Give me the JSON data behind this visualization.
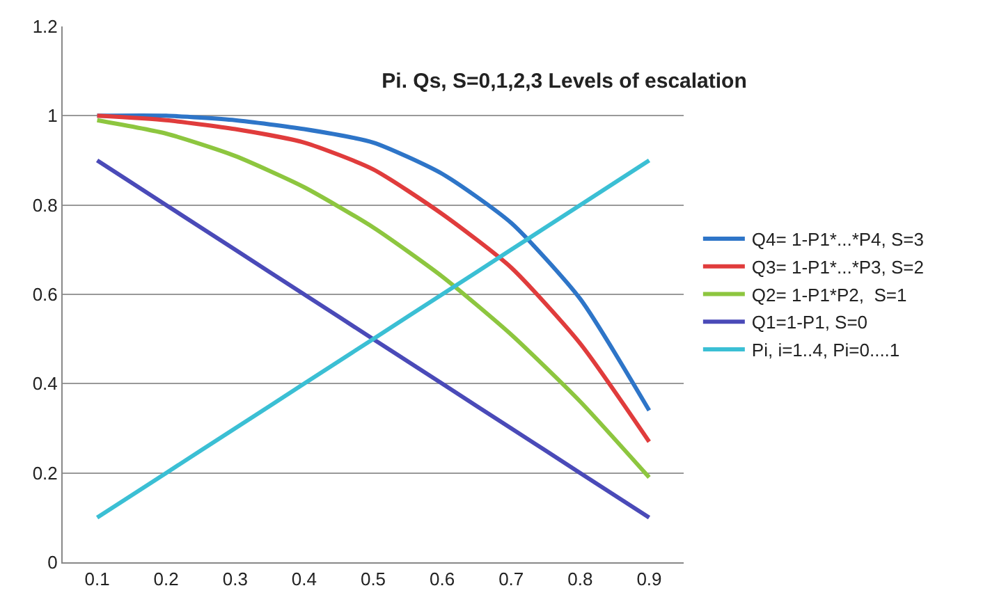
{
  "chart_data": {
    "type": "line",
    "title": "Pi. Qs, S=0,1,2,3 Levels of escalation",
    "categories": [
      "0.1",
      "0.2",
      "0.3",
      "0.4",
      "0.5",
      "0.6",
      "0.7",
      "0.8",
      "0.9"
    ],
    "series": [
      {
        "name": "Q4= 1-P1*...*P4, S=3",
        "color": "#2e75c8",
        "values": [
          1.0,
          1.0,
          0.99,
          0.97,
          0.94,
          0.87,
          0.76,
          0.59,
          0.34
        ]
      },
      {
        "name": "Q3= 1-P1*...*P3, S=2",
        "color": "#e03c3c",
        "values": [
          1.0,
          0.99,
          0.97,
          0.94,
          0.88,
          0.78,
          0.66,
          0.49,
          0.27
        ]
      },
      {
        "name": "Q2= 1-P1*P2,  S=1",
        "color": "#8dc63f",
        "values": [
          0.99,
          0.96,
          0.91,
          0.84,
          0.75,
          0.64,
          0.51,
          0.36,
          0.19
        ]
      },
      {
        "name": "Q1=1-P1, S=0",
        "color": "#4a4ab8",
        "values": [
          0.9,
          0.8,
          0.7,
          0.6,
          0.5,
          0.4,
          0.3,
          0.2,
          0.1
        ]
      },
      {
        "name": "Pi, i=1..4, Pi=0....1",
        "color": "#3bbfd4",
        "values": [
          0.1,
          0.2,
          0.3,
          0.4,
          0.5,
          0.6,
          0.7,
          0.8,
          0.9
        ]
      }
    ],
    "ylim": [
      0,
      1.2
    ],
    "yticks": [
      0,
      0.2,
      0.4,
      0.6,
      0.8,
      1,
      1.2
    ],
    "grid": "y",
    "legend": "right",
    "marker": "none",
    "line_style": "solid"
  }
}
